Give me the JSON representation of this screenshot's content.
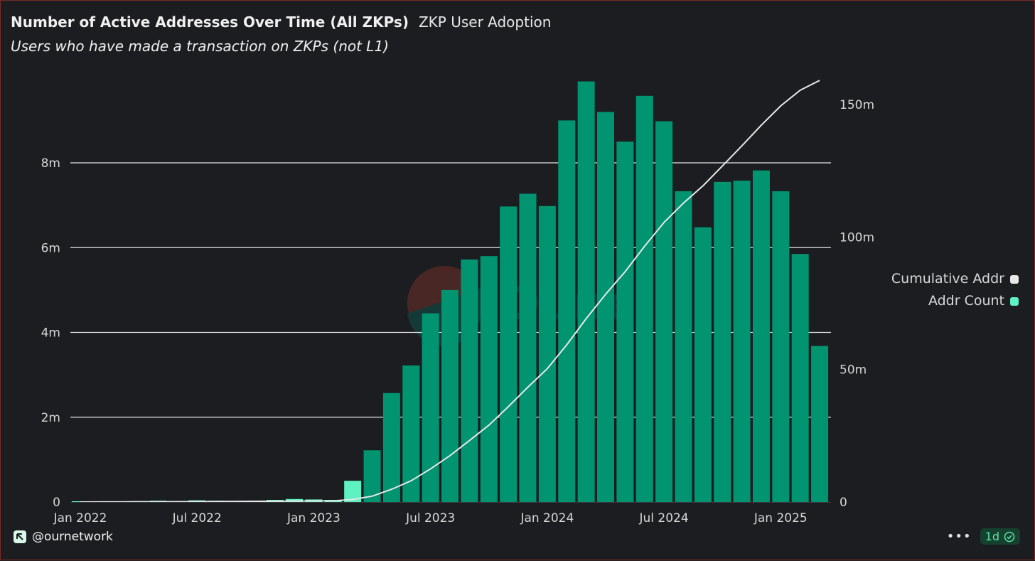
{
  "header": {
    "title": "Number of Active Addresses Over Time (All ZKPs)",
    "tag": "ZKP User Adoption",
    "description": "Users who have made a transaction on ZKPs (not L1)"
  },
  "legend": {
    "items": [
      {
        "label": "Cumulative Addr",
        "color": "#e8e8e8"
      },
      {
        "label": "Addr Count",
        "color": "#5ef2c2"
      }
    ]
  },
  "footer": {
    "brand": "@ournetwork",
    "more_icon": "ellipsis-icon",
    "badge_label": "1d",
    "badge_icon": "verified-check-icon"
  },
  "colors": {
    "bar": "#009471",
    "bar_highlight": "#5ef2c2",
    "line": "#e8e8e8",
    "grid": "#e8e8e8",
    "background": "#1b1d20"
  },
  "chart_data": {
    "type": "bar",
    "x_tick_labels": [
      "Jan 2022",
      "Jul 2022",
      "Jan 2023",
      "Jul 2023",
      "Jan 2024",
      "Jul 2024",
      "Jan 2025"
    ],
    "x_tick_index": [
      0,
      6,
      12,
      18,
      24,
      30,
      36
    ],
    "y_left": {
      "ticks": [
        0,
        2,
        4,
        6,
        8
      ],
      "tick_labels": [
        "0",
        "2m",
        "4m",
        "6m",
        "8m"
      ],
      "unit": "m",
      "lim": [
        0,
        10
      ]
    },
    "y_right": {
      "ticks": [
        0,
        50,
        100,
        150
      ],
      "tick_labels": [
        "0",
        "50m",
        "100m",
        "150m"
      ],
      "unit": "m",
      "lim": [
        0,
        160
      ]
    },
    "categories": [
      "2022-01",
      "2022-02",
      "2022-03",
      "2022-04",
      "2022-05",
      "2022-06",
      "2022-07",
      "2022-08",
      "2022-09",
      "2022-10",
      "2022-11",
      "2022-12",
      "2023-01",
      "2023-02",
      "2023-03",
      "2023-04",
      "2023-05",
      "2023-06",
      "2023-07",
      "2023-08",
      "2023-09",
      "2023-10",
      "2023-11",
      "2023-12",
      "2024-01",
      "2024-02",
      "2024-03",
      "2024-04",
      "2024-05",
      "2024-06",
      "2024-07",
      "2024-08",
      "2024-09",
      "2024-10",
      "2024-11",
      "2024-12",
      "2025-01",
      "2025-02",
      "2025-03"
    ],
    "series": [
      {
        "name": "Addr Count",
        "axis": "left",
        "values": [
          0.01,
          0.01,
          0.01,
          0.02,
          0.03,
          0.02,
          0.04,
          0.03,
          0.02,
          0.03,
          0.05,
          0.07,
          0.06,
          0.05,
          0.5,
          1.22,
          2.57,
          3.22,
          4.45,
          5.0,
          5.72,
          5.8,
          6.97,
          7.27,
          6.98,
          9.0,
          9.92,
          9.2,
          8.5,
          9.58,
          8.98,
          7.33,
          6.48,
          7.55,
          7.58,
          7.82,
          7.33,
          5.85,
          3.68
        ],
        "highlight_until_index": 14
      },
      {
        "name": "Cumulative Addr",
        "axis": "right",
        "values": [
          0.01,
          0.02,
          0.03,
          0.05,
          0.08,
          0.1,
          0.14,
          0.17,
          0.19,
          0.22,
          0.27,
          0.34,
          0.4,
          0.45,
          0.95,
          2.2,
          4.8,
          8.0,
          12.5,
          17.5,
          23.2,
          29.0,
          36.0,
          43.3,
          50.3,
          59.3,
          69.2,
          78.4,
          86.9,
          96.5,
          105.5,
          112.8,
          119.3,
          126.8,
          134.4,
          142.2,
          149.5,
          155.4,
          159.1
        ]
      }
    ],
    "legend_position": "right",
    "grid": true
  }
}
